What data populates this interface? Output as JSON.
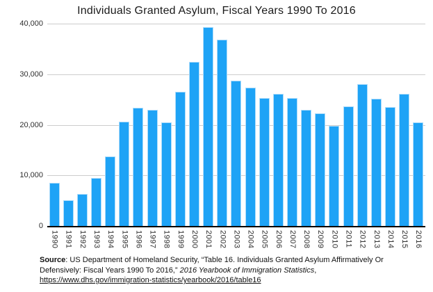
{
  "title": "Individuals Granted Asylum, Fiscal Years 1990 To 2016",
  "colors": {
    "bar": "#1ea3f6",
    "bar_edge": "#aedcfa",
    "gridline": "#cccccc",
    "axis_line": "#000000",
    "text": "#1a1a1a"
  },
  "chart_data": {
    "type": "bar",
    "title": "Individuals Granted Asylum, Fiscal Years 1990 To 2016",
    "xlabel": "",
    "ylabel": "",
    "ylim": [
      0,
      40000
    ],
    "grid": true,
    "legend": false,
    "categories": [
      "1990",
      "1991",
      "1992",
      "1993",
      "1994",
      "1995",
      "1996",
      "1997",
      "1998",
      "1999",
      "2000",
      "2001",
      "2002",
      "2003",
      "2004",
      "2005",
      "2006",
      "2007",
      "2008",
      "2009",
      "2010",
      "2011",
      "2012",
      "2013",
      "2014",
      "2015",
      "2016"
    ],
    "values": [
      8472,
      5035,
      6307,
      9539,
      13814,
      20646,
      23304,
      22939,
      20469,
      26578,
      32498,
      39309,
      36894,
      28714,
      27321,
      25257,
      26113,
      25270,
      22930,
      22219,
      19771,
      23669,
      28026,
      25199,
      23533,
      26124,
      20455
    ],
    "yticks": [
      {
        "label": "40,000",
        "value": 40000
      },
      {
        "label": "30,000",
        "value": 30000
      },
      {
        "label": "20,000",
        "value": 20000
      },
      {
        "label": "10,000",
        "value": 10000
      },
      {
        "label": "0",
        "value": 0
      }
    ]
  },
  "source": {
    "label": "Source",
    "text_before_italic": ": US Department of Homeland Security, “Table 16. Individuals Granted Asylum Affirmatively Or Defensively: Fiscal Years 1990 To 2016,” ",
    "italic": "2016 Yearbook of Immigration Statistics",
    "text_after_italic": ", ",
    "url": "https://www.dhs.gov/immigration-statistics/yearbook/2016/table16"
  }
}
